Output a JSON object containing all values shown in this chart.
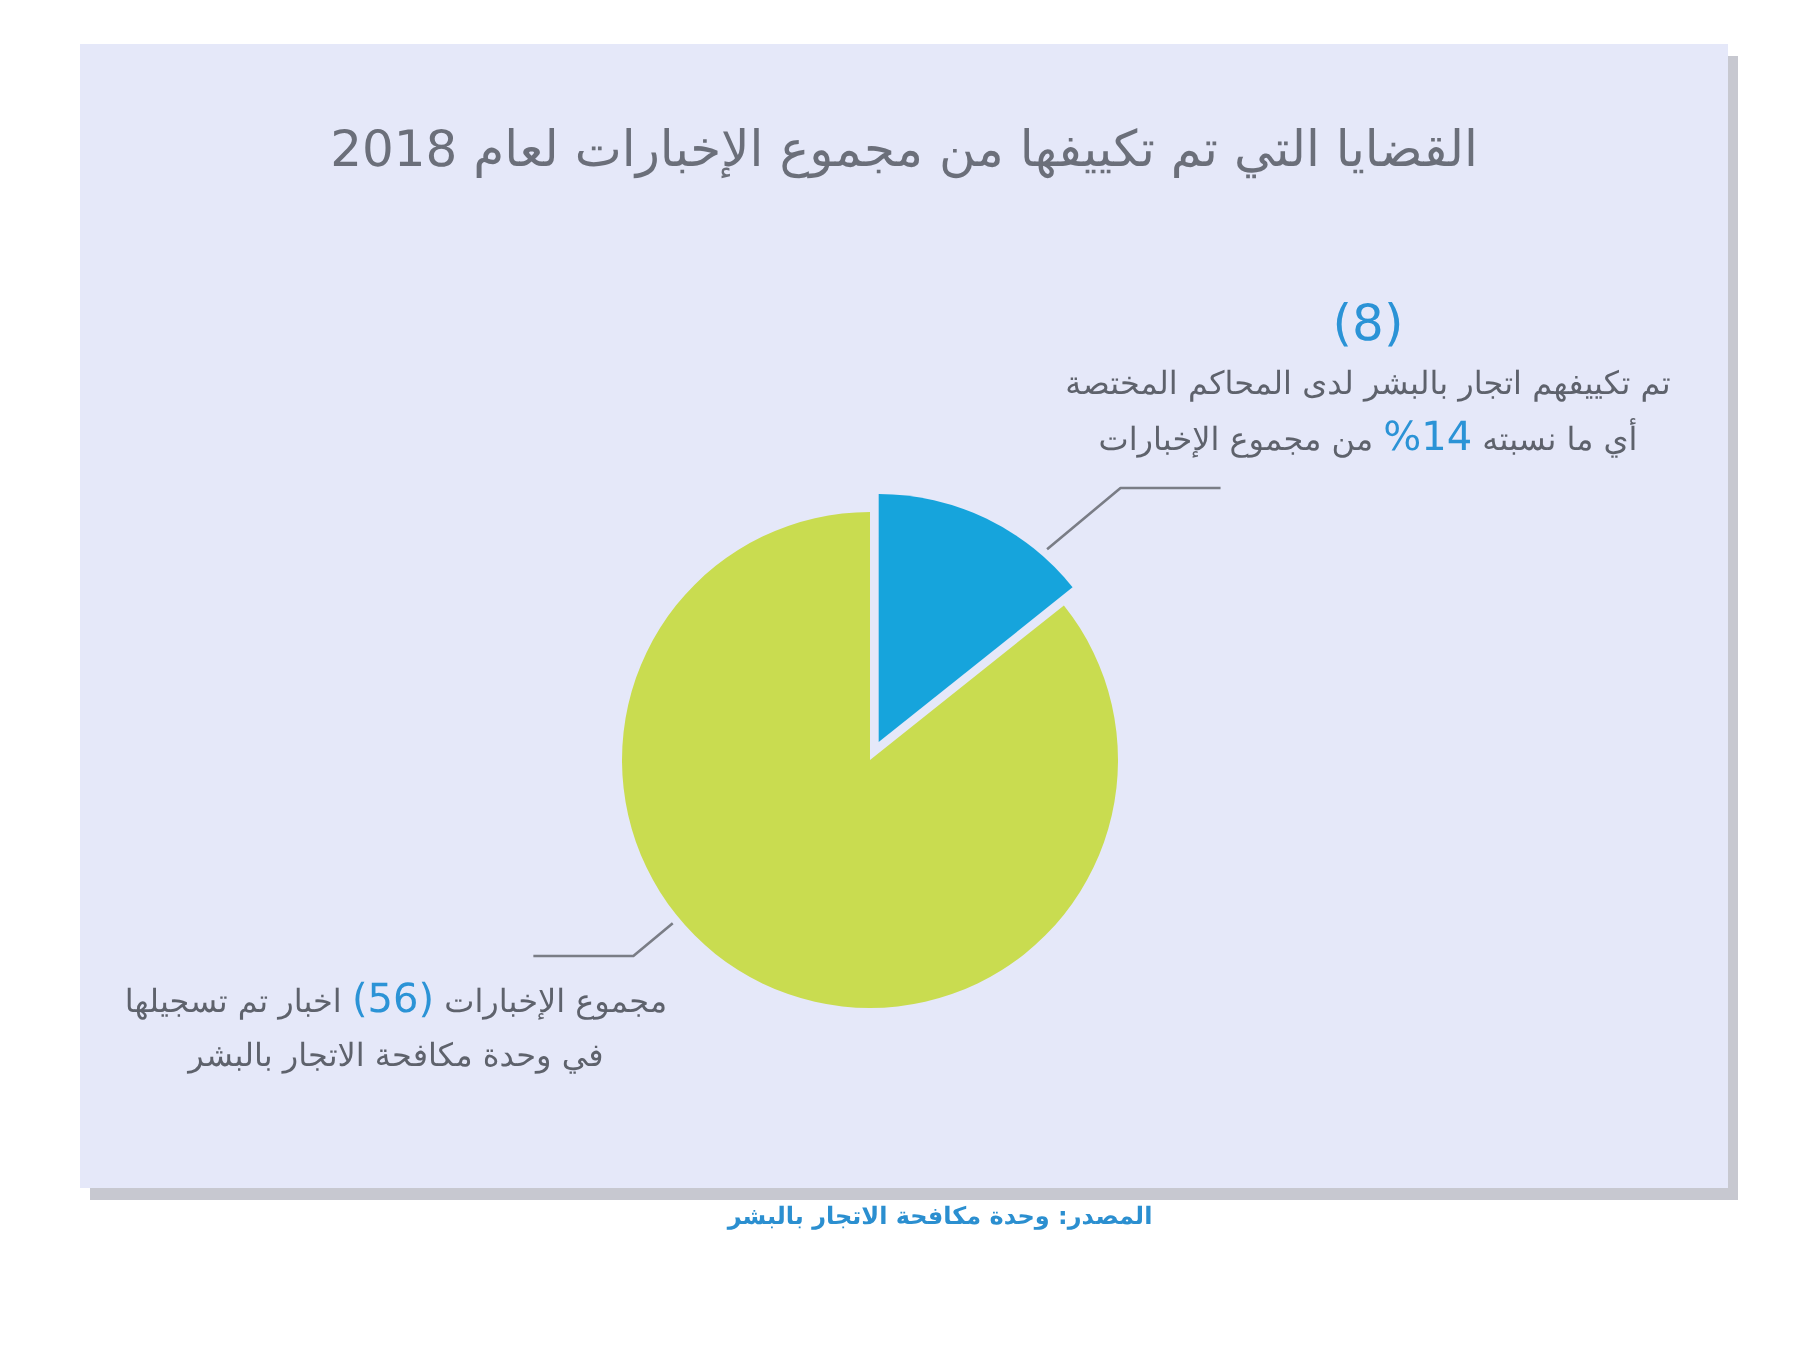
{
  "chart_data": {
    "type": "pie",
    "title": "القضايا التي تم تكييفها من مجموع الإخبارات لعام 2018",
    "categories": [
      "تم تكييفهم اتجار بالبشر لدى المحاكم المختصة أي ما نسبته 14% من مجموع الإخبارات",
      "مجموع الإخبارات (56) اخبار تم تسجيلها في وحدة مكافحة الاتجار بالبشر"
    ],
    "values": [
      8,
      48
    ],
    "colors": [
      "#16a4dc",
      "#c9dc50"
    ],
    "value_labels": [
      "(8)",
      null
    ],
    "annotations": [
      "المصدر: وحدة مكافحة الاتجار بالبشر"
    ]
  }
}
